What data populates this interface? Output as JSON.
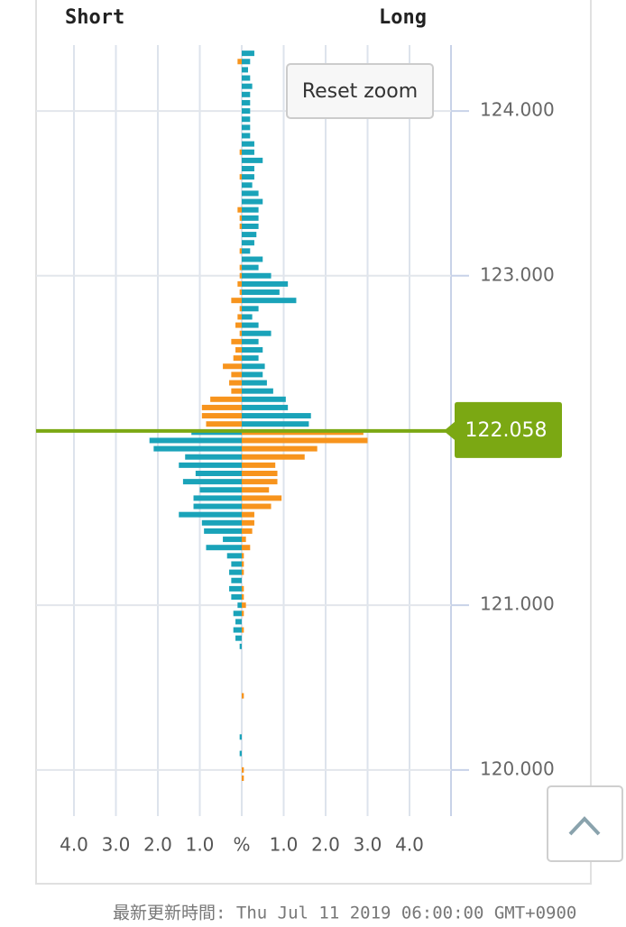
{
  "chart_data": {
    "type": "butterfly-bar",
    "x_label": "%",
    "xlim": [
      0,
      5
    ],
    "xticks": [
      {
        "value": 1,
        "label": "1.0"
      },
      {
        "value": 2,
        "label": "2.0"
      },
      {
        "value": 3,
        "label": "3.0"
      },
      {
        "value": 4,
        "label": "4.0"
      }
    ],
    "ylim": [
      119.72,
      124.4
    ],
    "yticks": [
      {
        "value": 120,
        "label": "120.000"
      },
      {
        "value": 121,
        "label": "121.000"
      },
      {
        "value": 123,
        "label": "123.000"
      },
      {
        "value": 124,
        "label": "124.000"
      }
    ],
    "current_price": 122.058,
    "current_price_color": "#7ba813",
    "grid": true,
    "y": [
      124.35,
      124.3,
      124.25,
      124.2,
      124.15,
      124.1,
      124.05,
      124,
      123.95,
      123.9,
      123.85,
      123.8,
      123.75,
      123.7,
      123.65,
      123.6,
      123.55,
      123.5,
      123.45,
      123.4,
      123.35,
      123.3,
      123.25,
      123.2,
      123.15,
      123.1,
      123.05,
      123,
      122.95,
      122.9,
      122.85,
      122.8,
      122.75,
      122.7,
      122.65,
      122.6,
      122.55,
      122.5,
      122.45,
      122.4,
      122.35,
      122.3,
      122.25,
      122.2,
      122.15,
      122.1,
      122.05,
      122,
      121.95,
      121.9,
      121.85,
      121.8,
      121.75,
      121.7,
      121.65,
      121.6,
      121.55,
      121.5,
      121.45,
      121.4,
      121.35,
      121.3,
      121.25,
      121.2,
      121.15,
      121.1,
      121.05,
      121,
      120.95,
      120.9,
      120.85,
      120.8,
      120.75,
      120.45,
      120.2,
      120.1,
      120,
      119.95
    ],
    "series": [
      {
        "name": "Short",
        "side": "left",
        "color_above": "#f7941d",
        "color_below": "#1aa3b9",
        "values": [
          0,
          0.1,
          0,
          0,
          0,
          0,
          0,
          0,
          0,
          0,
          0,
          0,
          0.05,
          0,
          0,
          0.05,
          0,
          0,
          0,
          0.1,
          0.05,
          0.05,
          0,
          0,
          0.05,
          0,
          0.05,
          0.05,
          0.1,
          0.05,
          0.25,
          0.05,
          0.1,
          0.15,
          0.05,
          0.25,
          0.15,
          0.2,
          0.45,
          0.25,
          0.3,
          0.25,
          0.75,
          0.95,
          0.95,
          0.85,
          1.2,
          2.2,
          2.1,
          1.35,
          1.5,
          1.1,
          1.4,
          1.0,
          1.15,
          1.15,
          1.5,
          0.95,
          0.9,
          0.45,
          0.85,
          0.35,
          0.25,
          0.3,
          0.25,
          0.3,
          0.25,
          0.1,
          0.2,
          0.15,
          0.2,
          0.15,
          0.05,
          0,
          0.05,
          0.05,
          0,
          0
        ]
      },
      {
        "name": "Long",
        "side": "right",
        "color_above": "#1aa3b9",
        "color_below": "#f7941d",
        "values": [
          0.3,
          0.2,
          0.15,
          0.2,
          0.25,
          0.2,
          0.2,
          0.2,
          0.2,
          0.2,
          0.2,
          0.3,
          0.3,
          0.5,
          0.3,
          0.3,
          0.25,
          0.4,
          0.5,
          0.4,
          0.4,
          0.4,
          0.35,
          0.3,
          0.2,
          0.5,
          0.4,
          0.7,
          1.1,
          0.9,
          1.3,
          0.4,
          0.25,
          0.4,
          0.7,
          0.4,
          0.5,
          0.4,
          0.55,
          0.5,
          0.6,
          0.75,
          1.05,
          1.1,
          1.65,
          1.6,
          2.9,
          3.0,
          1.8,
          1.5,
          0.8,
          0.85,
          0.85,
          0.65,
          0.95,
          0.7,
          0.3,
          0.3,
          0.25,
          0.1,
          0.2,
          0.05,
          0.05,
          0.05,
          0,
          0.05,
          0.05,
          0.1,
          0.05,
          0,
          0.05,
          0,
          0,
          0.05,
          0,
          0,
          0.05,
          0.05
        ]
      }
    ]
  },
  "ui": {
    "reset_zoom": "Reset zoom"
  },
  "footer": "最新更新時間: Thu Jul 11 2019 06:00:00 GMT+0900"
}
